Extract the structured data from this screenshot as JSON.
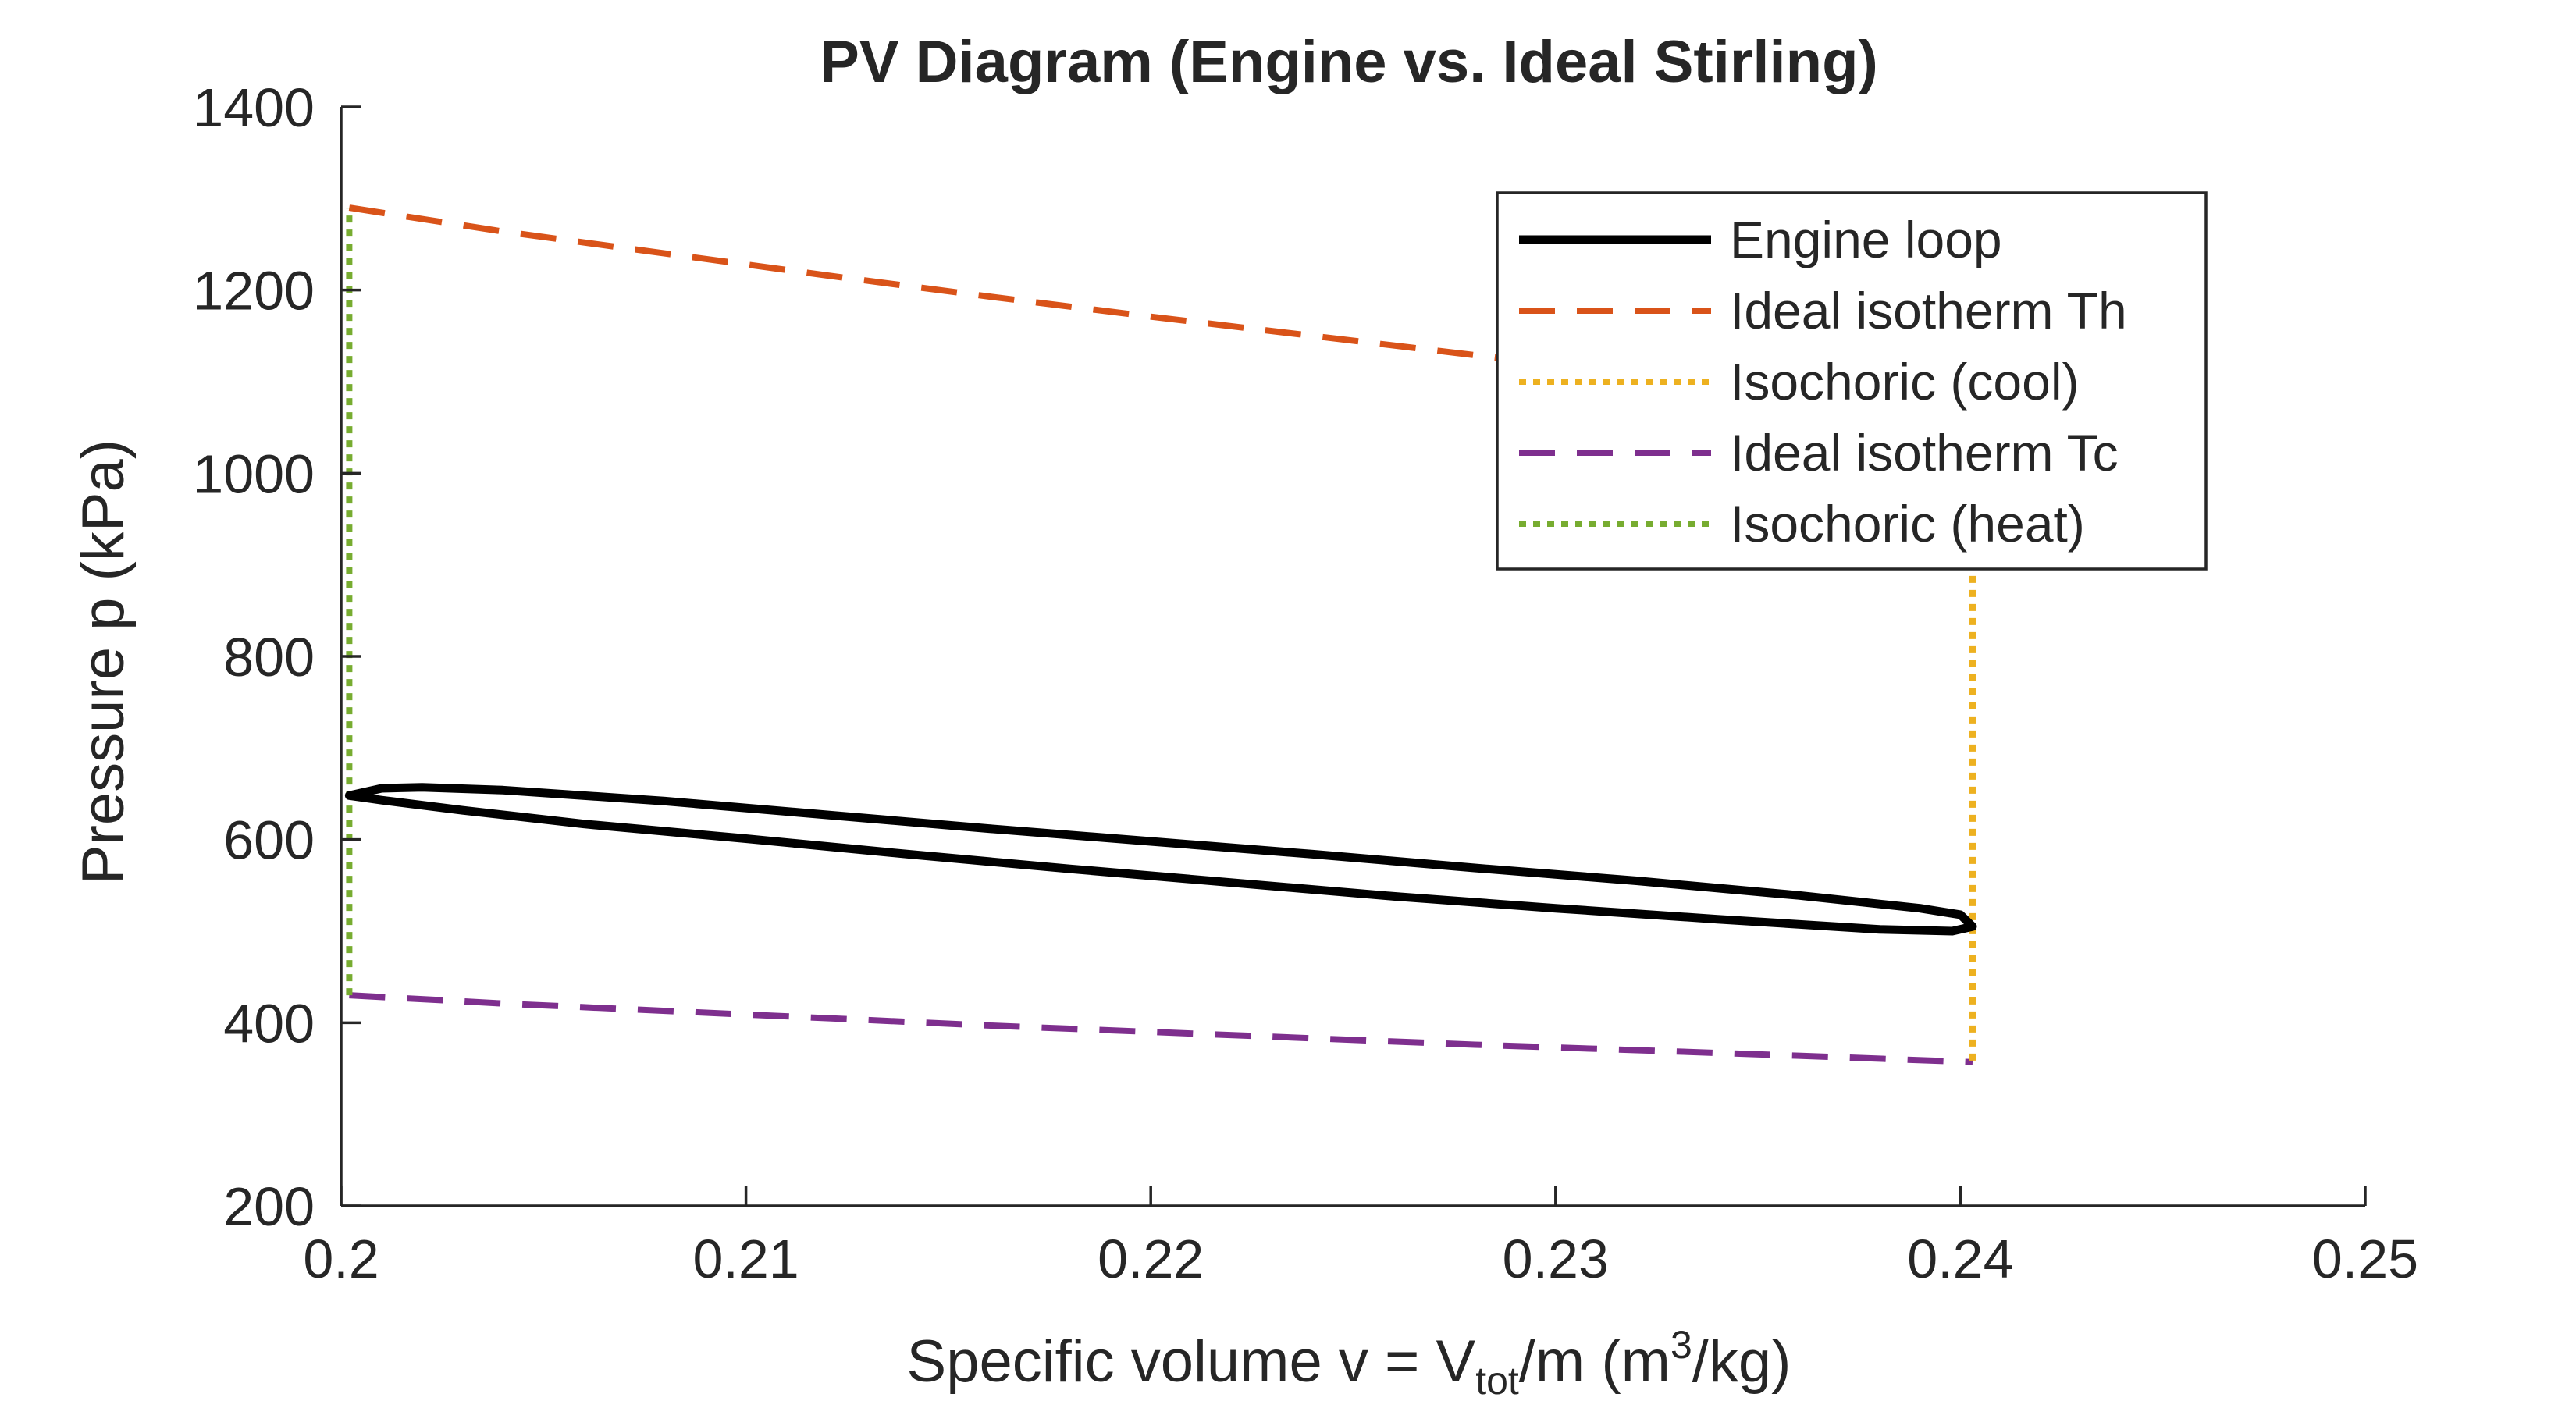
{
  "chart_data": {
    "type": "line",
    "title": "PV Diagram (Engine vs. Ideal Stirling)",
    "xlabel": {
      "parts": [
        {
          "text": "Specific  volume  v  =  V",
          "style": "normal"
        },
        {
          "text": "tot",
          "style": "sub"
        },
        {
          "text": "/m  (m",
          "style": "normal"
        },
        {
          "text": "3",
          "style": "sup"
        },
        {
          "text": "/kg)",
          "style": "normal"
        }
      ]
    },
    "ylabel": "Pressure p (kPa)",
    "xlim": [
      0.2,
      0.25
    ],
    "ylim": [
      200,
      1400
    ],
    "xticks": [
      0.2,
      0.21,
      0.22,
      0.23,
      0.24,
      0.25
    ],
    "xtick_labels": [
      "0.2",
      "0.21",
      "0.22",
      "0.23",
      "0.24",
      "0.25"
    ],
    "yticks": [
      200,
      400,
      600,
      800,
      1000,
      1200,
      1400
    ],
    "ytick_labels": [
      "200",
      "400",
      "600",
      "800",
      "1000",
      "1200",
      "1400"
    ],
    "grid": false,
    "legend_position": "top-right",
    "series": [
      {
        "name": "Engine loop",
        "color": "#000000",
        "style": "solid",
        "closed": true,
        "x": [
          0.2002,
          0.201,
          0.202,
          0.204,
          0.208,
          0.212,
          0.216,
          0.22,
          0.224,
          0.228,
          0.232,
          0.236,
          0.239,
          0.24,
          0.2403,
          0.2398,
          0.238,
          0.234,
          0.23,
          0.226,
          0.222,
          0.218,
          0.214,
          0.21,
          0.206,
          0.203,
          0.201,
          0.2002
        ],
        "y": [
          648,
          656,
          657,
          654,
          642,
          627,
          612,
          598,
          584,
          569,
          555,
          539,
          525,
          518,
          505,
          500,
          502,
          513,
          525,
          538,
          553,
          568,
          584,
          601,
          617,
          632,
          643,
          648
        ]
      },
      {
        "name": "Ideal isotherm Th",
        "color": "#d95319",
        "style": "dashed",
        "x": [
          0.2002,
          0.204,
          0.208,
          0.212,
          0.216,
          0.22,
          0.224,
          0.228,
          0.232,
          0.236,
          0.2403
        ],
        "y": [
          1290,
          1264,
          1240,
          1216,
          1193,
          1171,
          1150,
          1129,
          1109,
          1090,
          1072
        ]
      },
      {
        "name": "Isochoric (cool)",
        "color": "#edb120",
        "style": "dotted",
        "x": [
          0.2403,
          0.2403
        ],
        "y": [
          1072,
          357
        ]
      },
      {
        "name": "Ideal isotherm Tc",
        "color": "#7e2f8e",
        "style": "dashed",
        "x": [
          0.2002,
          0.204,
          0.208,
          0.212,
          0.216,
          0.22,
          0.224,
          0.228,
          0.232,
          0.236,
          0.2403
        ],
        "y": [
          430,
          421,
          413,
          405,
          397,
          390,
          383,
          376,
          370,
          364,
          357
        ]
      },
      {
        "name": "Isochoric (heat)",
        "color": "#77ac30",
        "style": "dotted",
        "x": [
          0.2002,
          0.2002
        ],
        "y": [
          430,
          1290
        ]
      }
    ]
  }
}
